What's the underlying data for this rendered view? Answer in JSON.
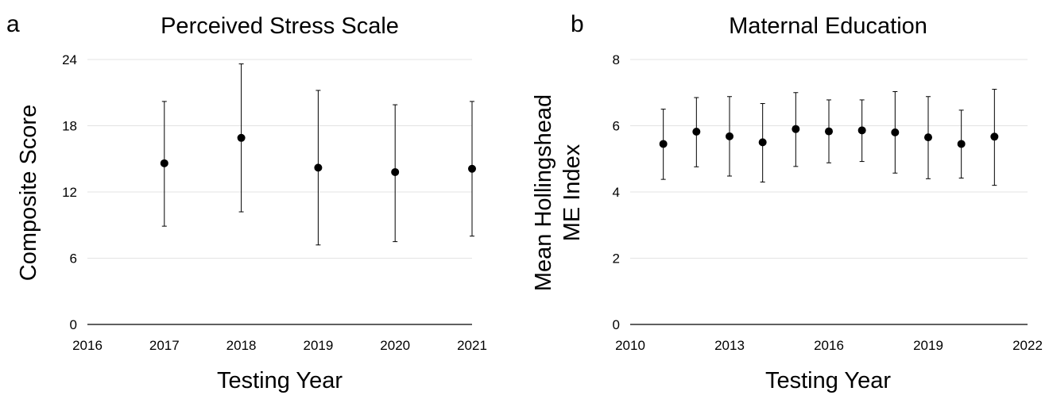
{
  "chart_data": [
    {
      "type": "scatter",
      "panel_label": "a",
      "title": "Perceived Stress Scale",
      "xlabel": "Testing Year",
      "ylabel": "Composite Score",
      "xlim": [
        2016,
        2021
      ],
      "ylim": [
        0,
        24
      ],
      "x_ticks": [
        "2016",
        "2017",
        "2018",
        "2019",
        "2020",
        "2021"
      ],
      "y_ticks": [
        "0",
        "6",
        "12",
        "18",
        "24"
      ],
      "grid": "horizontal",
      "x": [
        2017,
        2018,
        2019,
        2020,
        2021
      ],
      "values": [
        14.6,
        16.9,
        14.2,
        13.8,
        14.1
      ],
      "error_low": [
        8.9,
        10.2,
        7.2,
        7.5,
        8.0
      ],
      "error_high": [
        20.2,
        23.6,
        21.2,
        19.9,
        20.2
      ]
    },
    {
      "type": "scatter",
      "panel_label": "b",
      "title": "Maternal Education",
      "xlabel": "Testing Year",
      "ylabel": "Mean Hollingshead ME Index",
      "ylabel_lines": [
        "Mean Hollingshead",
        "ME Index"
      ],
      "xlim": [
        2010,
        2022
      ],
      "ylim": [
        0,
        8
      ],
      "x_ticks": [
        "2010",
        "2013",
        "2016",
        "2019",
        "2022"
      ],
      "y_ticks": [
        "0",
        "2",
        "4",
        "6",
        "8"
      ],
      "grid": "horizontal",
      "x": [
        2011,
        2012,
        2013,
        2014,
        2015,
        2016,
        2017,
        2018,
        2019,
        2020,
        2021
      ],
      "values": [
        5.45,
        5.82,
        5.68,
        5.5,
        5.9,
        5.83,
        5.86,
        5.8,
        5.65,
        5.45,
        5.67
      ],
      "error_low": [
        4.38,
        4.76,
        4.48,
        4.3,
        4.77,
        4.88,
        4.92,
        4.57,
        4.4,
        4.42,
        4.2
      ],
      "error_high": [
        6.5,
        6.85,
        6.88,
        6.67,
        7.0,
        6.78,
        6.78,
        7.03,
        6.88,
        6.47,
        7.1
      ]
    }
  ]
}
